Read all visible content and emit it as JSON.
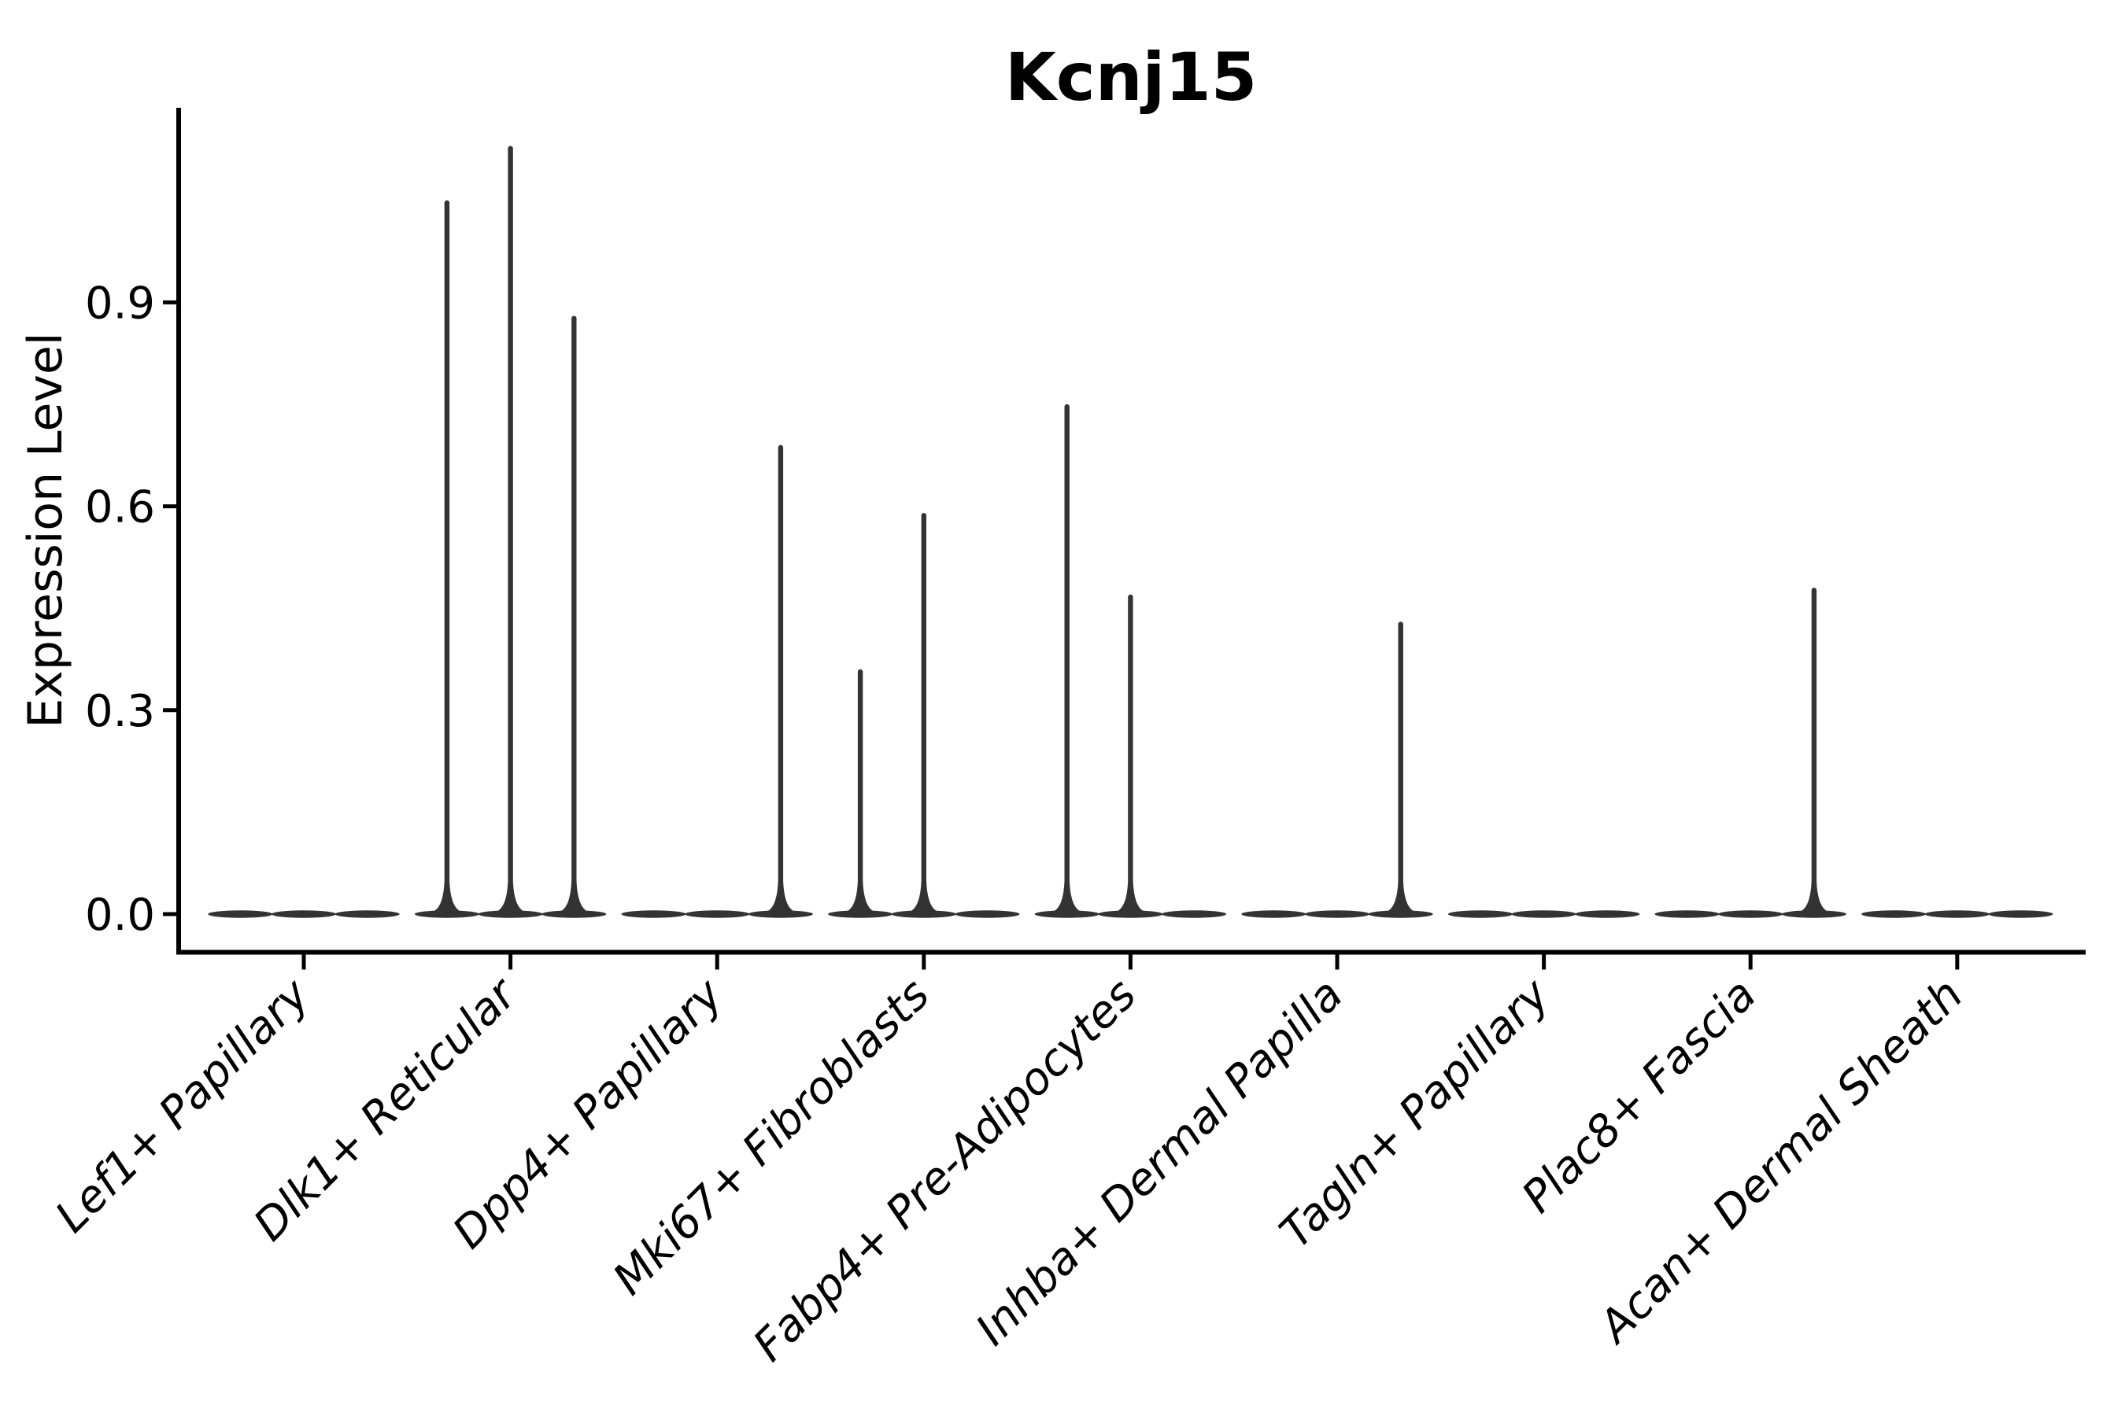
{
  "figure": {
    "background_color": "#ffffff",
    "ink_color": "#000000",
    "violin_color": "#333333"
  },
  "chart_data": {
    "type": "violin",
    "title": "Kcnj15",
    "ylabel": "Expression Level",
    "xlabel": "",
    "ylim": [
      -0.04,
      1.19
    ],
    "yticks": [
      "0.0",
      "0.3",
      "0.6",
      "0.9"
    ],
    "ytick_values": [
      0.0,
      0.3,
      0.6,
      0.9
    ],
    "grid": false,
    "legend": "none",
    "x_tick_rotation": 45,
    "sub_violins_per_category": 3,
    "description": "Violin plot of Kcnj15 expression; density mass sits at 0 for every population (flat pancakes), with thin spikes marking the few expressing cells per sub-violin.",
    "categories": [
      "Lef1+ Papillary",
      "Dlk1+ Reticular",
      "Dpp4+ Papillary",
      "Mki67+ Fibroblasts",
      "Fabp4+ Pre-Adipocytes",
      "Inhba+ Dermal Papilla",
      "Tagln+ Papillary",
      "Plac8+ Fascia",
      "Acan+ Dermal Sheath"
    ],
    "violins": [
      {
        "category": "Lef1+ Papillary",
        "spikes": []
      },
      {
        "category": "Dlk1+ Reticular",
        "spikes": [
          {
            "position": "left",
            "max": 1.05
          },
          {
            "position": "center",
            "max": 1.13
          },
          {
            "position": "right",
            "max": 0.88
          }
        ]
      },
      {
        "category": "Dpp4+ Papillary",
        "spikes": [
          {
            "position": "right",
            "max": 0.69
          }
        ]
      },
      {
        "category": "Mki67+ Fibroblasts",
        "spikes": [
          {
            "position": "left",
            "max": 0.36
          },
          {
            "position": "center",
            "max": 0.59
          }
        ]
      },
      {
        "category": "Fabp4+ Pre-Adipocytes",
        "spikes": [
          {
            "position": "left",
            "max": 0.75
          },
          {
            "position": "center",
            "max": 0.47
          }
        ]
      },
      {
        "category": "Inhba+ Dermal Papilla",
        "spikes": [
          {
            "position": "right",
            "max": 0.43
          }
        ]
      },
      {
        "category": "Tagln+ Papillary",
        "spikes": []
      },
      {
        "category": "Plac8+ Fascia",
        "spikes": [
          {
            "position": "right",
            "max": 0.48
          }
        ]
      },
      {
        "category": "Acan+ Dermal Sheath",
        "spikes": []
      }
    ]
  }
}
